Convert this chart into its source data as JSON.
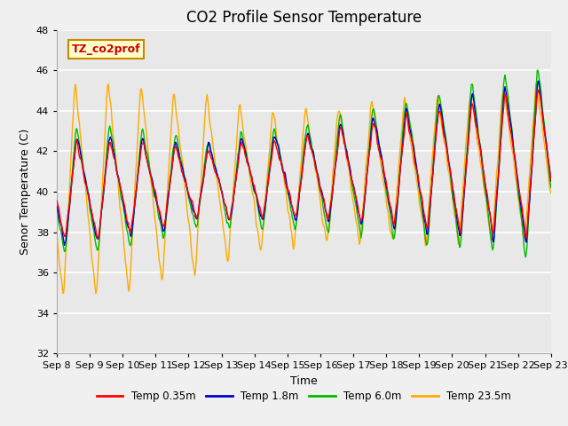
{
  "title": "CO2 Profile Sensor Temperature",
  "xlabel": "Time",
  "ylabel": "Senor Temperature (C)",
  "ylim": [
    32,
    48
  ],
  "xtick_labels": [
    "Sep 8",
    "Sep 9",
    "Sep 10",
    "Sep 11",
    "Sep 12",
    "Sep 13",
    "Sep 14",
    "Sep 15",
    "Sep 16",
    "Sep 17",
    "Sep 18",
    "Sep 19",
    "Sep 20",
    "Sep 21",
    "Sep 22",
    "Sep 23"
  ],
  "legend_labels": [
    "Temp 0.35m",
    "Temp 1.8m",
    "Temp 6.0m",
    "Temp 23.5m"
  ],
  "line_colors": [
    "#ff0000",
    "#0000cc",
    "#00bb00",
    "#ffaa00"
  ],
  "annotation_text": "TZ_co2prof",
  "annotation_color": "#cc0000",
  "annotation_bg": "#ffffcc",
  "annotation_border": "#cc8800",
  "fig_bg_color": "#f0f0f0",
  "plot_bg_color": "#e8e8e8",
  "title_fontsize": 12,
  "label_fontsize": 9,
  "tick_fontsize": 8
}
